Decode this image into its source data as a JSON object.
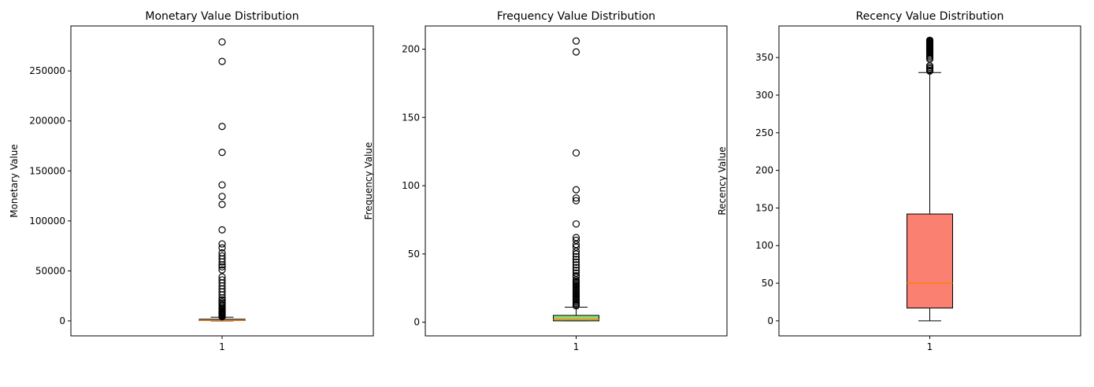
{
  "chart_data": [
    {
      "type": "boxplot",
      "title": "Monetary Value Distribution",
      "ylabel": "Monetary Value",
      "xlabel": "",
      "x_tick_labels": [
        "1"
      ],
      "ylim": [
        -15000,
        295000
      ],
      "yticks": [
        0,
        50000,
        100000,
        150000,
        200000,
        250000
      ],
      "ytick_labels": [
        "0",
        "50000",
        "100000",
        "150000",
        "200000",
        "250000"
      ],
      "grid": false,
      "box_color": "#1f77b4",
      "median_color": "#ff7f0e",
      "box": {
        "whisker_low": 0,
        "q1": 300,
        "median": 650,
        "q3": 1650,
        "whisker_high": 3700
      },
      "outliers": [
        279000,
        259500,
        194500,
        168500,
        136000,
        124500,
        116500,
        91000,
        77000,
        73000,
        68000,
        65000,
        62000,
        59000,
        56000,
        54000,
        51000,
        44000,
        41000,
        38000,
        35000,
        32000,
        29000,
        26000,
        23000,
        21000,
        19000,
        17500,
        16000,
        14500,
        13000,
        12000,
        11000,
        10000,
        9200,
        8500,
        7800,
        7200,
        6600,
        6000,
        5500,
        5000,
        4600,
        4200
      ]
    },
    {
      "type": "boxplot",
      "title": "Frequency Value Distribution",
      "ylabel": "Frequency Value",
      "xlabel": "",
      "x_tick_labels": [
        "1"
      ],
      "ylim": [
        -10,
        217
      ],
      "yticks": [
        0,
        50,
        100,
        150,
        200
      ],
      "ytick_labels": [
        "0",
        "50",
        "100",
        "150",
        "200"
      ],
      "grid": false,
      "box_color": "#90d979",
      "median_color": "#ff7f0e",
      "box": {
        "whisker_low": 1,
        "q1": 1,
        "median": 2,
        "q3": 5,
        "whisker_high": 11
      },
      "outliers": [
        206,
        198,
        124,
        97,
        91,
        89,
        72,
        62,
        60,
        57,
        55,
        52,
        50,
        48,
        46,
        44,
        42,
        40,
        38,
        36,
        34,
        33,
        31,
        30,
        29,
        28,
        27,
        26,
        25,
        24,
        23,
        22,
        21,
        20,
        19,
        18,
        17,
        16,
        15,
        14,
        13,
        12
      ]
    },
    {
      "type": "boxplot",
      "title": "Recency Value Distribution",
      "ylabel": "Recency Value",
      "xlabel": "",
      "x_tick_labels": [
        "1"
      ],
      "ylim": [
        -20,
        392
      ],
      "yticks": [
        0,
        50,
        100,
        150,
        200,
        250,
        300,
        350
      ],
      "ytick_labels": [
        "0",
        "50",
        "100",
        "150",
        "200",
        "250",
        "300",
        "350"
      ],
      "grid": false,
      "box_color": "#fa8072",
      "median_color": "#ff7f0e",
      "box": {
        "whisker_low": 0,
        "q1": 17,
        "median": 50,
        "q3": 142,
        "whisker_high": 330
      },
      "outliers": [
        373,
        372,
        371,
        370,
        369,
        368,
        367,
        366,
        365,
        364,
        363,
        362,
        361,
        360,
        359,
        358,
        357,
        356,
        354,
        352,
        350,
        348,
        339,
        337,
        335,
        333,
        332
      ]
    }
  ]
}
